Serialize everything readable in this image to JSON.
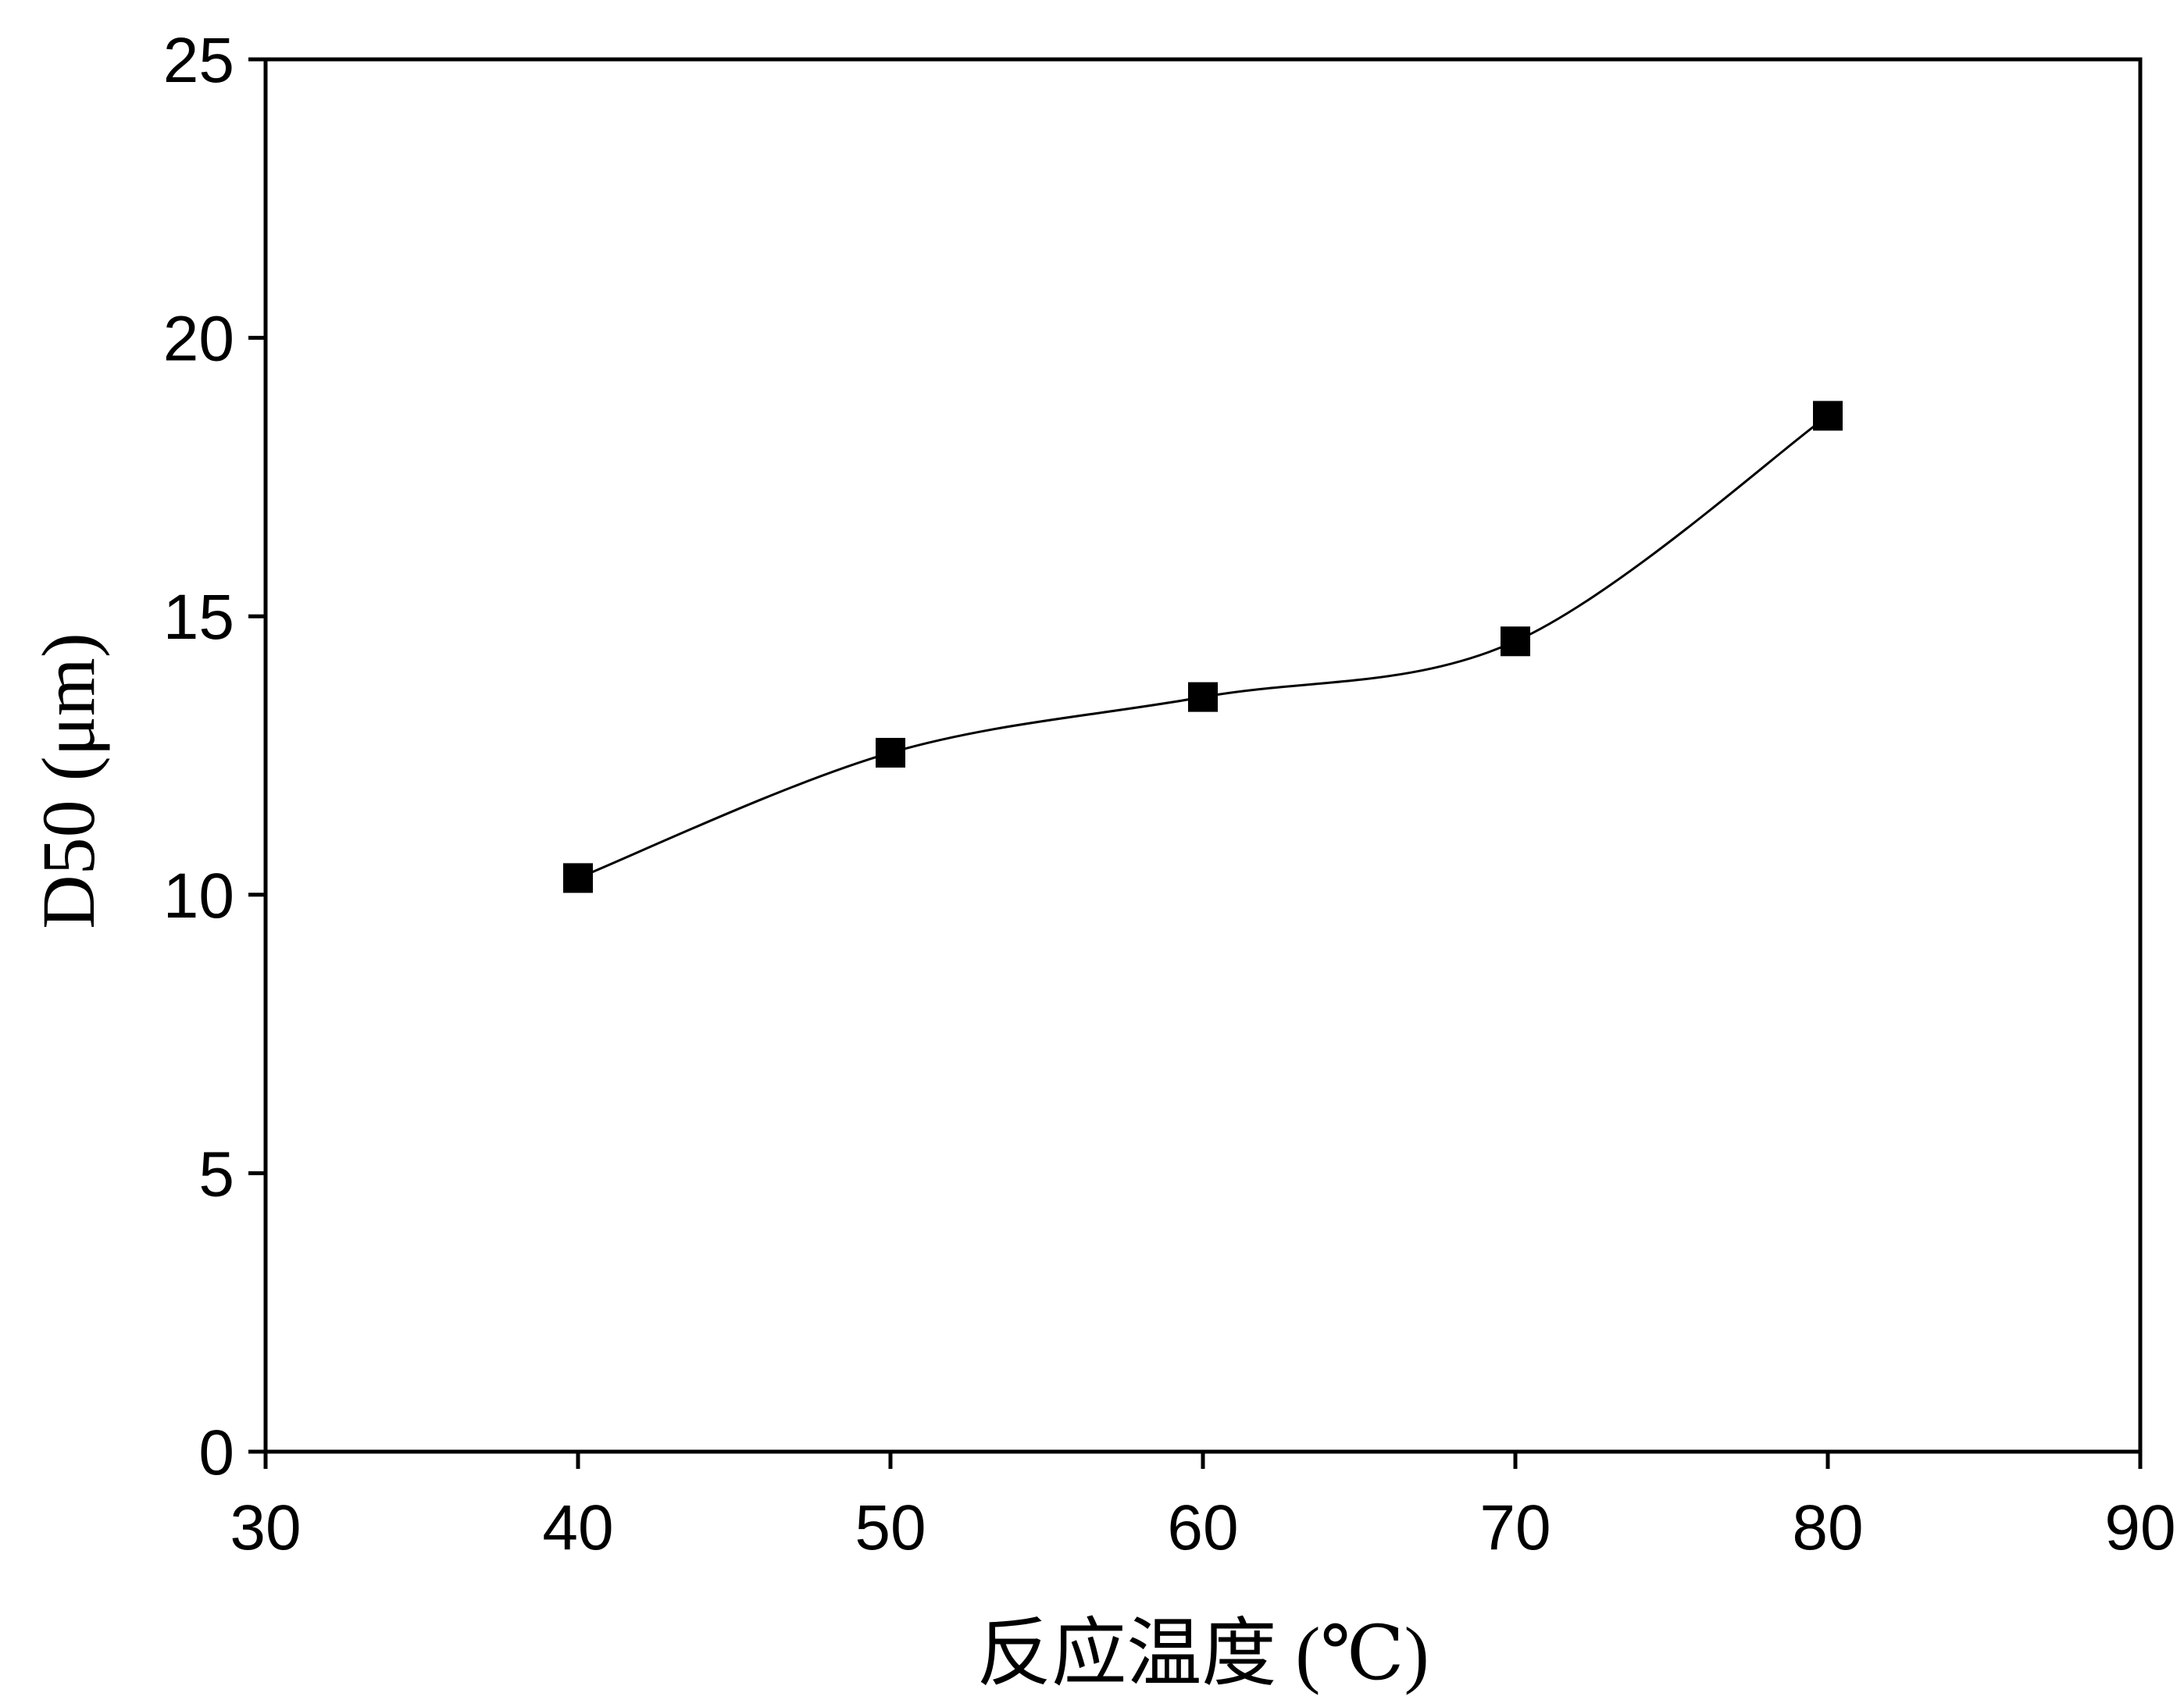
{
  "chart_data": {
    "type": "line",
    "title": "",
    "xlabel": "反应温度 (℃)",
    "ylabel": "D50 (μm)",
    "xlim": [
      30,
      90
    ],
    "ylim": [
      0,
      25
    ],
    "xticks": [
      30,
      40,
      50,
      60,
      70,
      80,
      90
    ],
    "yticks": [
      0,
      5,
      10,
      15,
      20,
      25
    ],
    "grid": false,
    "legend": "none",
    "series": [
      {
        "marker": "square",
        "line": "smooth",
        "color": "#000000",
        "x": [
          40,
          50,
          60,
          70,
          80
        ],
        "y": [
          10.3,
          12.55,
          13.55,
          14.55,
          18.6
        ]
      }
    ]
  }
}
